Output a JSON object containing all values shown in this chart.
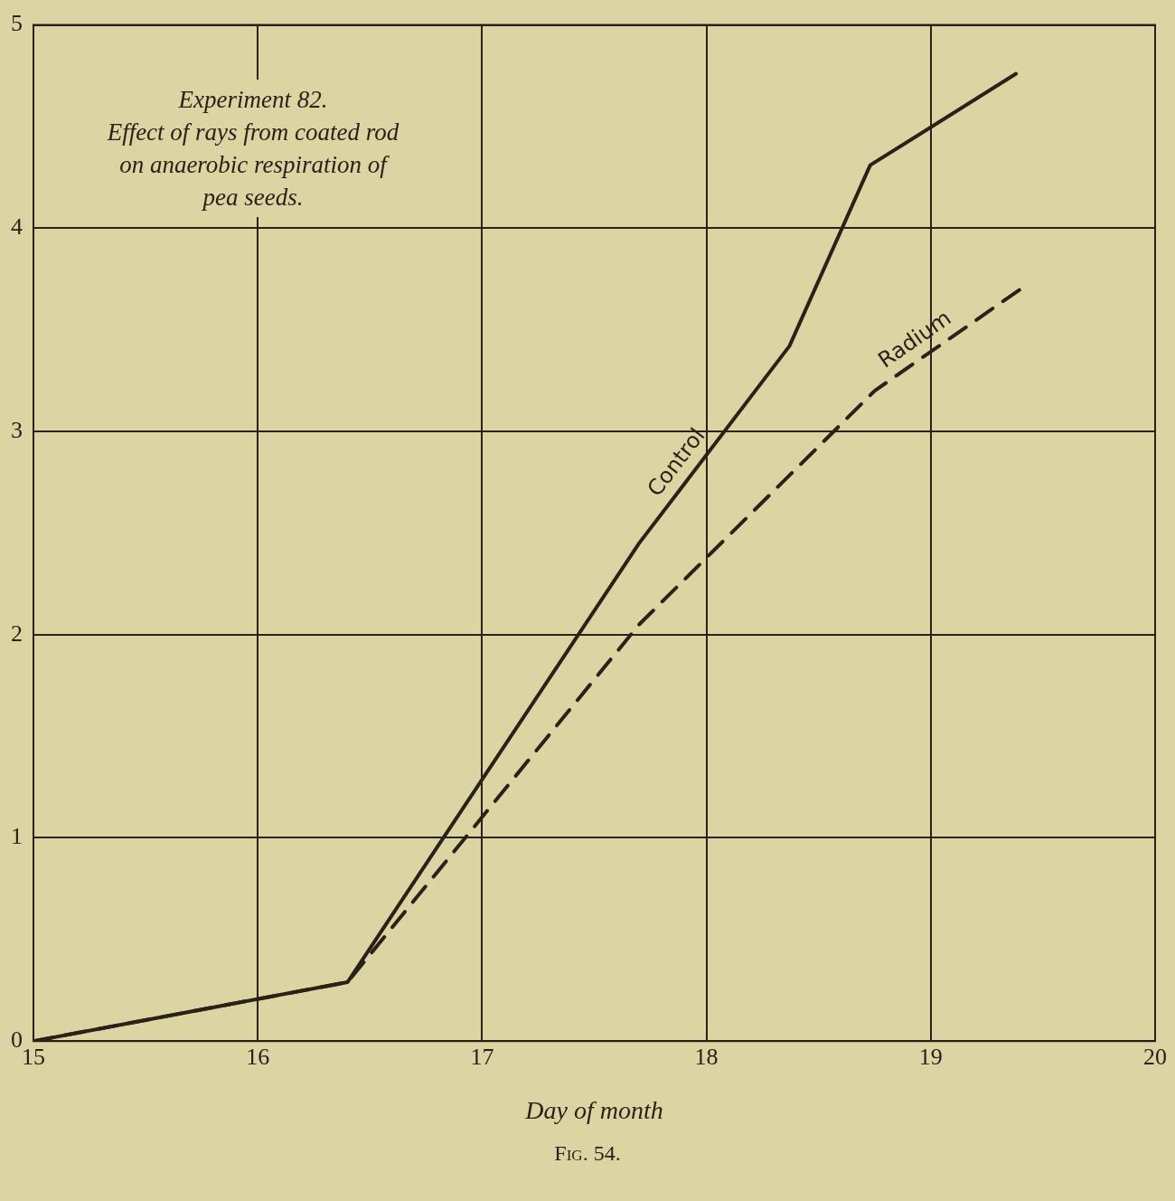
{
  "chart_data": {
    "type": "line",
    "title": "Experiment 82.",
    "subtitle": "Effect of rays from coated rod on anaerobic respiration of pea seeds.",
    "xlabel": "Day of month",
    "annotations": [
      "Fig. 54."
    ],
    "xlim": [
      15,
      20
    ],
    "xticks": [
      15,
      16,
      17,
      18,
      19,
      20
    ],
    "ylim": [
      0,
      5
    ],
    "yticks": [
      0,
      1,
      2,
      3,
      4,
      5
    ],
    "grid": true,
    "legend": false,
    "marker": "none",
    "series": [
      {
        "name": "Control",
        "color": "#2a2218",
        "line_style": "solid",
        "x": [
          15,
          16.4,
          17.7,
          18.37,
          18.73,
          19.38
        ],
        "values": [
          0,
          0.29,
          2.45,
          3.42,
          4.31,
          4.76
        ]
      },
      {
        "name": "Radium",
        "color": "#2a2218",
        "line_style": "dashed",
        "x": [
          15,
          16.4,
          17.7,
          18.75,
          19.4
        ],
        "values": [
          0,
          0.29,
          2.05,
          3.2,
          3.7
        ]
      }
    ]
  }
}
